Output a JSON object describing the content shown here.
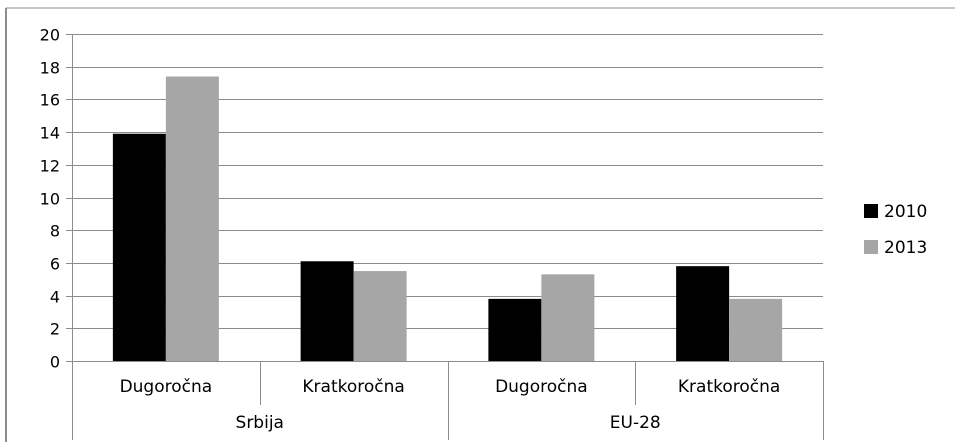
{
  "chart_data": {
    "type": "bar",
    "title": "",
    "xlabel": "",
    "ylabel": "",
    "ylim": [
      0,
      20
    ],
    "ytick_step": 2,
    "grid": true,
    "legend_placement": "right",
    "groups": [
      {
        "label": "Srbija",
        "categories": [
          "Dugoročna",
          "Kratkoročna"
        ]
      },
      {
        "label": "EU-28",
        "categories": [
          "Dugoročna",
          "Kratkoročna"
        ]
      }
    ],
    "series": [
      {
        "name": "2010",
        "color": "#000000",
        "values": [
          13.9,
          6.1,
          3.8,
          5.8
        ]
      },
      {
        "name": "2013",
        "color": "#a6a6a6",
        "values": [
          17.4,
          5.5,
          5.3,
          3.8
        ]
      }
    ]
  }
}
